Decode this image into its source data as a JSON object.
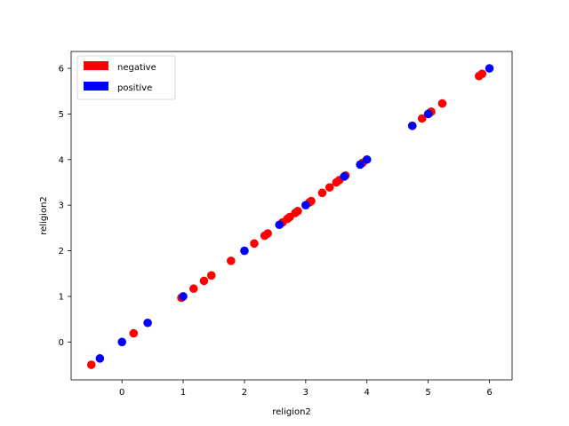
{
  "chart_data": {
    "type": "scatter",
    "xlabel": "religion2",
    "ylabel": "religion2",
    "xlim": [
      -0.83,
      6.37
    ],
    "ylim": [
      -0.83,
      6.37
    ],
    "xticks": [
      0,
      1,
      2,
      3,
      4,
      5,
      6
    ],
    "yticks": [
      0,
      1,
      2,
      3,
      4,
      5,
      6
    ],
    "grid": false,
    "legend_position": "top-left",
    "series": [
      {
        "name": "negative",
        "color": "#ff0000",
        "points": [
          [
            -0.5,
            -0.5
          ],
          [
            0.19,
            0.19
          ],
          [
            0.97,
            0.97
          ],
          [
            1.17,
            1.17
          ],
          [
            1.34,
            1.34
          ],
          [
            1.46,
            1.46
          ],
          [
            1.78,
            1.78
          ],
          [
            2.16,
            2.16
          ],
          [
            2.33,
            2.33
          ],
          [
            2.38,
            2.38
          ],
          [
            2.62,
            2.62
          ],
          [
            2.7,
            2.7
          ],
          [
            2.74,
            2.74
          ],
          [
            2.83,
            2.83
          ],
          [
            2.87,
            2.87
          ],
          [
            3.06,
            3.06
          ],
          [
            3.09,
            3.09
          ],
          [
            3.27,
            3.27
          ],
          [
            3.39,
            3.39
          ],
          [
            3.5,
            3.5
          ],
          [
            3.55,
            3.55
          ],
          [
            3.65,
            3.65
          ],
          [
            3.93,
            3.93
          ],
          [
            4.74,
            4.74
          ],
          [
            4.9,
            4.9
          ],
          [
            5.02,
            5.02
          ],
          [
            5.05,
            5.05
          ],
          [
            5.23,
            5.23
          ],
          [
            5.83,
            5.83
          ],
          [
            5.88,
            5.88
          ]
        ]
      },
      {
        "name": "positive",
        "color": "#0000ff",
        "points": [
          [
            -0.36,
            -0.36
          ],
          [
            0.0,
            0.0
          ],
          [
            0.42,
            0.42
          ],
          [
            1.0,
            1.0
          ],
          [
            2.0,
            2.0
          ],
          [
            2.57,
            2.57
          ],
          [
            3.0,
            3.0
          ],
          [
            3.63,
            3.63
          ],
          [
            3.89,
            3.89
          ],
          [
            4.0,
            4.0
          ],
          [
            4.74,
            4.74
          ],
          [
            5.0,
            5.0
          ],
          [
            6.0,
            6.0
          ]
        ]
      }
    ]
  }
}
